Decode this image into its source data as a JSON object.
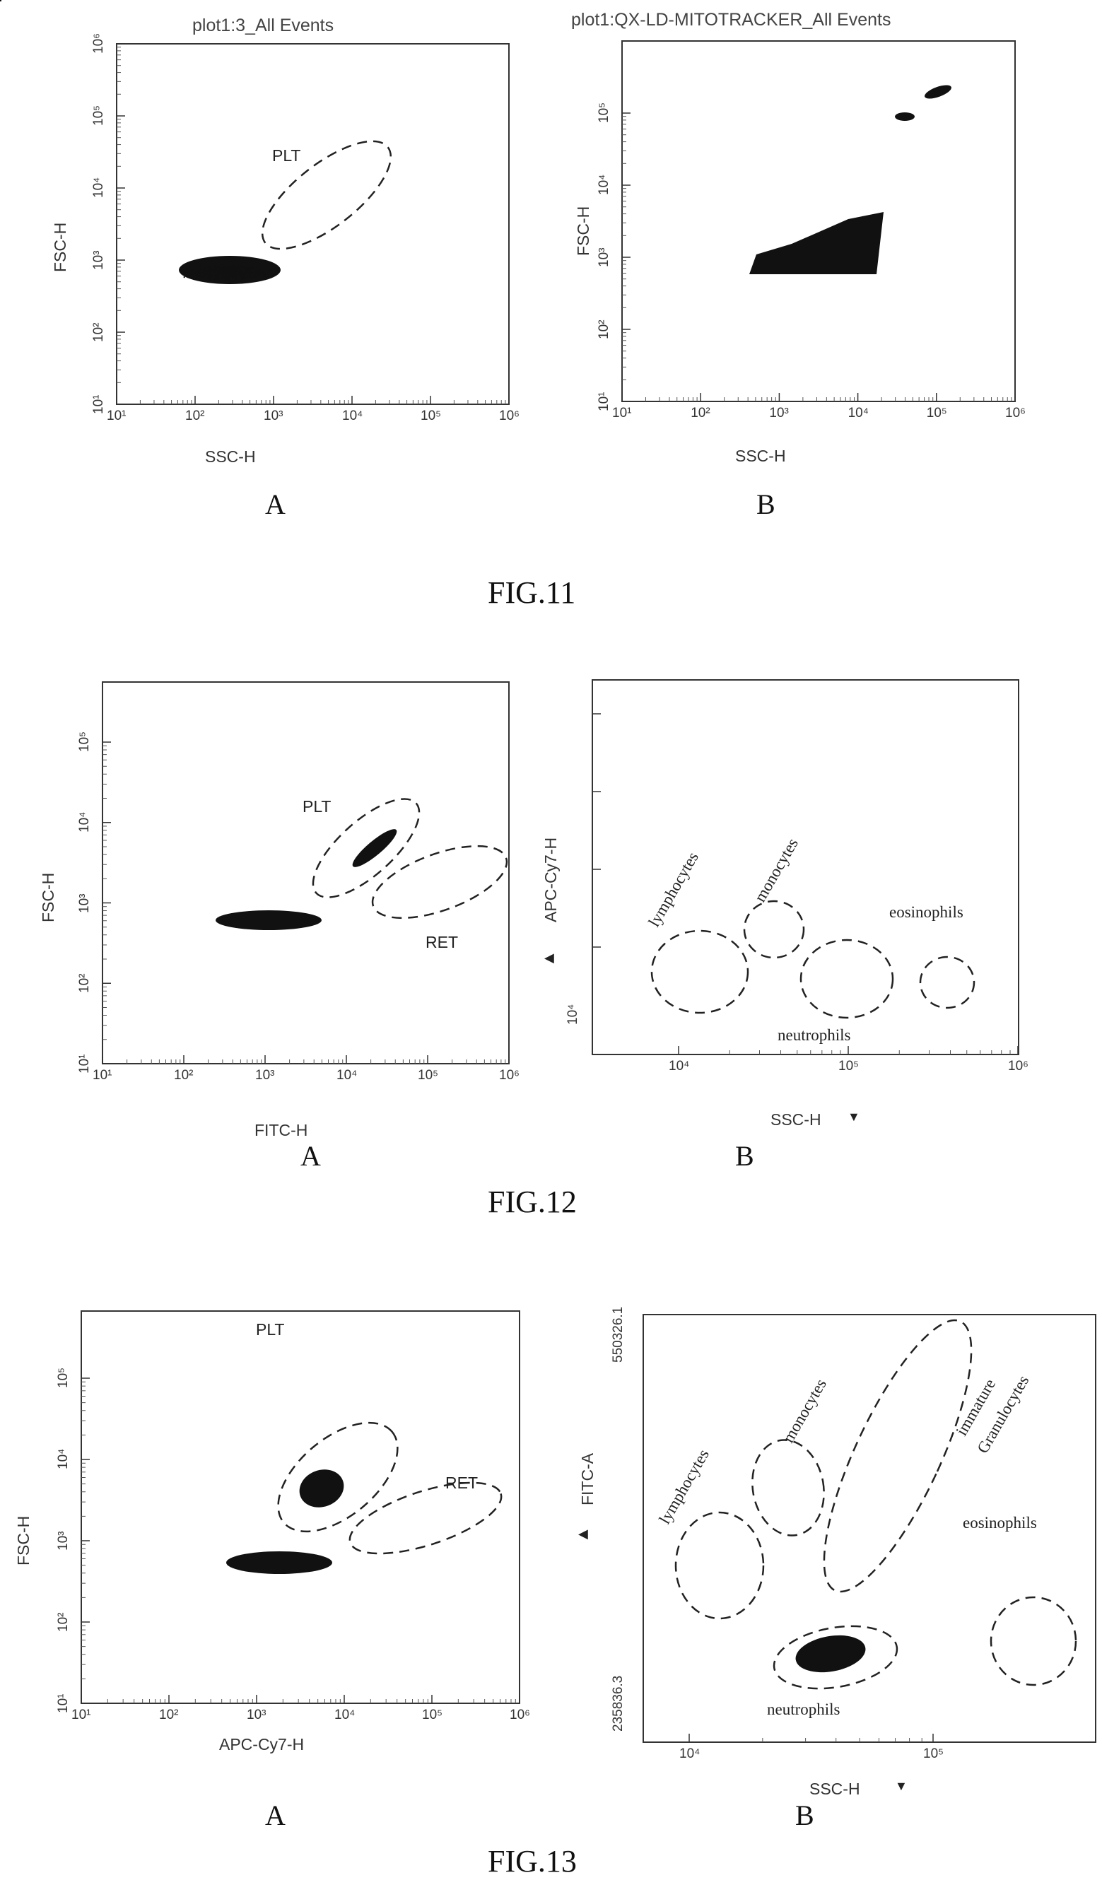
{
  "figures": [
    {
      "caption": "FIG.11",
      "panels": [
        {
          "letter": "A",
          "title": "plot1:3_All Events",
          "x_label": "SSC-H",
          "y_label": "FSC-H",
          "x_ticks": [
            "10¹",
            "10²",
            "10³",
            "10⁴",
            "10⁵",
            "10⁶"
          ],
          "y_ticks": [
            "10¹",
            "10²",
            "10³",
            "10⁴",
            "10⁵",
            "10⁶"
          ],
          "gates": [
            "PLT"
          ]
        },
        {
          "letter": "B",
          "title": "plot1:QX-LD-MITOTRACKER_All Events",
          "x_label": "SSC-H",
          "y_label": "FSC-H",
          "x_ticks": [
            "10¹",
            "10²",
            "10³",
            "10⁴",
            "10⁵",
            "10⁶"
          ],
          "y_ticks": [
            "10¹",
            "10²",
            "10³",
            "10⁴",
            "10⁵"
          ]
        }
      ]
    },
    {
      "caption": "FIG.12",
      "panels": [
        {
          "letter": "A",
          "x_label": "FITC-H",
          "y_label": "FSC-H",
          "x_ticks": [
            "10¹",
            "10²",
            "10³",
            "10⁴",
            "10⁵",
            "10⁶"
          ],
          "y_ticks": [
            "10¹",
            "10²",
            "10³",
            "10⁴",
            "10⁵"
          ],
          "gates": [
            "PLT",
            "RET"
          ]
        },
        {
          "letter": "B",
          "x_label": "SSC-H",
          "y_label": "APC-Cy7-H",
          "x_ticks": [
            "10⁴",
            "10⁵",
            "10⁶"
          ],
          "y_ticks": [
            "10⁴"
          ],
          "gates": [
            "lymphocytes",
            "monocytes",
            "eosinophils",
            "neutrophils"
          ]
        }
      ]
    },
    {
      "caption": "FIG.13",
      "panels": [
        {
          "letter": "A",
          "x_label": "APC-Cy7-H",
          "y_label": "FSC-H",
          "x_ticks": [
            "10¹",
            "10²",
            "10³",
            "10⁴",
            "10⁵",
            "10⁶"
          ],
          "y_ticks": [
            "10¹",
            "10²",
            "10³",
            "10⁴",
            "10⁵"
          ],
          "gates": [
            "PLT",
            "RET"
          ]
        },
        {
          "letter": "B",
          "x_label": "SSC-H",
          "y_label": "FITC-A",
          "x_ticks": [
            "10⁴",
            "10⁵"
          ],
          "y_ticks": [
            "550326.1",
            "235836.3"
          ],
          "gates": [
            "lymphocytes",
            "monocytes",
            "immature",
            "Granulocytes",
            "eosinophils",
            "neutrophils"
          ]
        }
      ]
    }
  ]
}
